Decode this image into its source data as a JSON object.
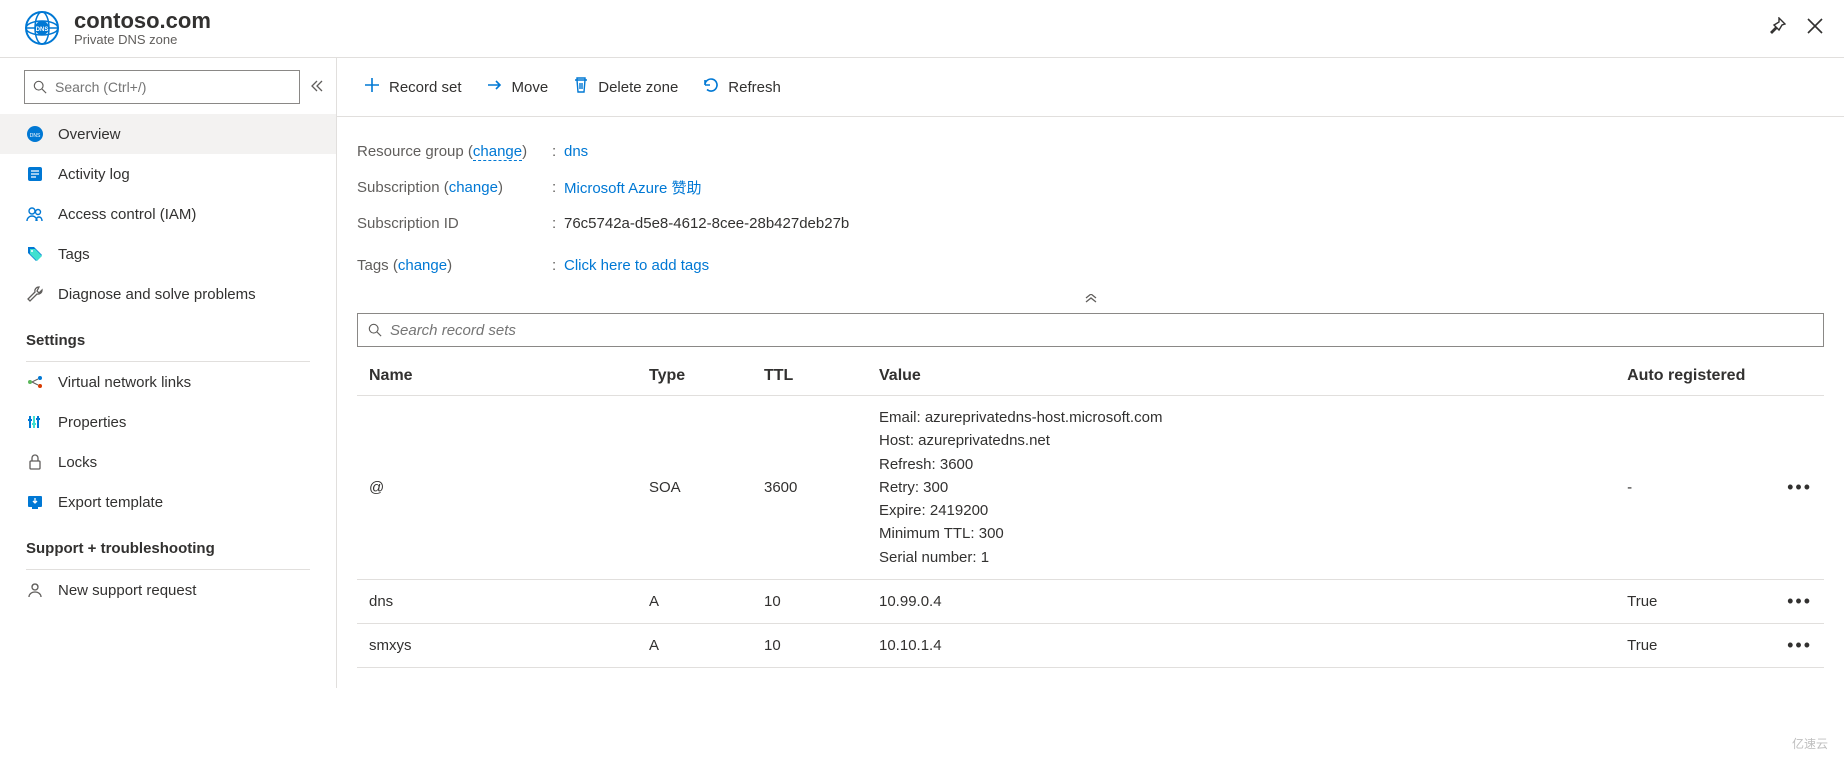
{
  "header": {
    "title": "contoso.com",
    "subtitle": "Private DNS zone"
  },
  "sidebar": {
    "search_placeholder": "Search (Ctrl+/)",
    "selected": "overview",
    "items": [
      {
        "key": "overview",
        "label": "Overview"
      },
      {
        "key": "activity",
        "label": "Activity log"
      },
      {
        "key": "iam",
        "label": "Access control (IAM)"
      },
      {
        "key": "tags",
        "label": "Tags"
      },
      {
        "key": "diagnose",
        "label": "Diagnose and solve problems"
      }
    ],
    "settings_header": "Settings",
    "settings_items": [
      {
        "key": "vnet",
        "label": "Virtual network links"
      },
      {
        "key": "props",
        "label": "Properties"
      },
      {
        "key": "locks",
        "label": "Locks"
      },
      {
        "key": "export",
        "label": "Export template"
      }
    ],
    "support_header": "Support + troubleshooting",
    "support_items": [
      {
        "key": "support",
        "label": "New support request"
      }
    ]
  },
  "toolbar": {
    "record_set": "Record set",
    "move": "Move",
    "delete_zone": "Delete zone",
    "refresh": "Refresh"
  },
  "properties": {
    "resource_group_label": "Resource group",
    "resource_group_change": "change",
    "resource_group_value": "dns",
    "subscription_label": "Subscription",
    "subscription_change": "change",
    "subscription_value": "Microsoft Azure 赞助",
    "subscription_id_label": "Subscription ID",
    "subscription_id_value": "76c5742a-d5e8-4612-8cee-28b427deb27b",
    "tags_label": "Tags",
    "tags_change": "change",
    "tags_value": "Click here to add tags"
  },
  "records": {
    "search_placeholder": "Search record sets",
    "columns": {
      "name": "Name",
      "type": "Type",
      "ttl": "TTL",
      "value": "Value",
      "auto": "Auto registered"
    },
    "rows": [
      {
        "name": "@",
        "type": "SOA",
        "ttl": "3600",
        "value": "Email: azureprivatedns-host.microsoft.com\nHost: azureprivatedns.net\nRefresh: 3600\nRetry: 300\nExpire: 2419200\nMinimum TTL: 300\nSerial number: 1",
        "auto": "-"
      },
      {
        "name": "dns",
        "type": "A",
        "ttl": "10",
        "value": "10.99.0.4",
        "auto": "True"
      },
      {
        "name": "smxys",
        "type": "A",
        "ttl": "10",
        "value": "10.10.1.4",
        "auto": "True"
      }
    ]
  },
  "watermark": "亿速云"
}
